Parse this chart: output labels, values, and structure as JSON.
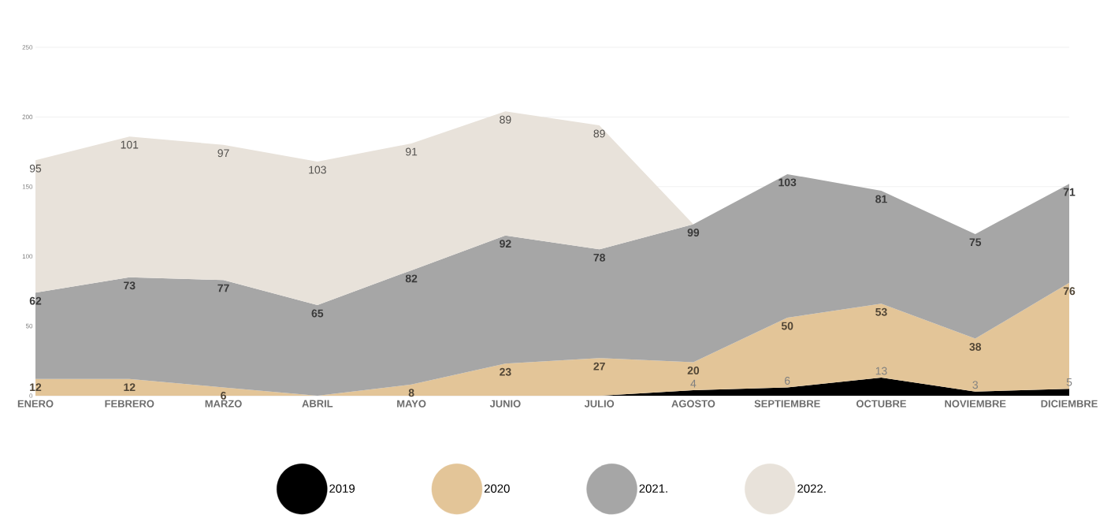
{
  "chart_data": {
    "type": "area",
    "stacked": true,
    "categories": [
      "ENERO",
      "FEBRERO",
      "MARZO",
      "ABRIL",
      "MAYO",
      "JUNIO",
      "JULIO",
      "AGOSTO",
      "SEPTIEMBRE",
      "OCTUBRE",
      "NOVIEMBRE",
      "DICIEMBRE"
    ],
    "series": [
      {
        "name": "2019",
        "color": "#000000",
        "values": [
          0,
          0,
          0,
          0,
          0,
          0,
          0,
          4,
          6,
          13,
          3,
          5
        ],
        "value_labels": [
          null,
          null,
          null,
          null,
          null,
          null,
          null,
          "4",
          "6",
          "13",
          "3",
          "5"
        ]
      },
      {
        "name": "2020",
        "color": "#e3c598",
        "values": [
          12,
          12,
          6,
          0,
          8,
          23,
          27,
          20,
          50,
          53,
          38,
          76
        ],
        "value_labels": [
          "12",
          "12",
          "6",
          null,
          "8",
          "23",
          "27",
          "20",
          "50",
          "53",
          "38",
          "76"
        ]
      },
      {
        "name": "2021.",
        "color": "#a6a6a6",
        "values": [
          62,
          73,
          77,
          65,
          82,
          92,
          78,
          99,
          103,
          81,
          75,
          71
        ],
        "value_labels": [
          "62",
          "73",
          "77",
          "65",
          "82",
          "92",
          "78",
          "99",
          "103",
          "81",
          "75",
          "71"
        ]
      },
      {
        "name": "2022.",
        "color": "#e8e2da",
        "values": [
          95,
          101,
          97,
          103,
          91,
          89,
          89,
          0,
          null,
          null,
          null,
          null
        ],
        "value_labels": [
          "95",
          "101",
          "97",
          "103",
          "91",
          "89",
          "89",
          null,
          null,
          null,
          null,
          null
        ]
      }
    ],
    "ylim": [
      0,
      250
    ],
    "yticks": [
      0,
      50,
      100,
      150,
      200,
      250
    ],
    "grid": "y",
    "legend": "bottom"
  }
}
